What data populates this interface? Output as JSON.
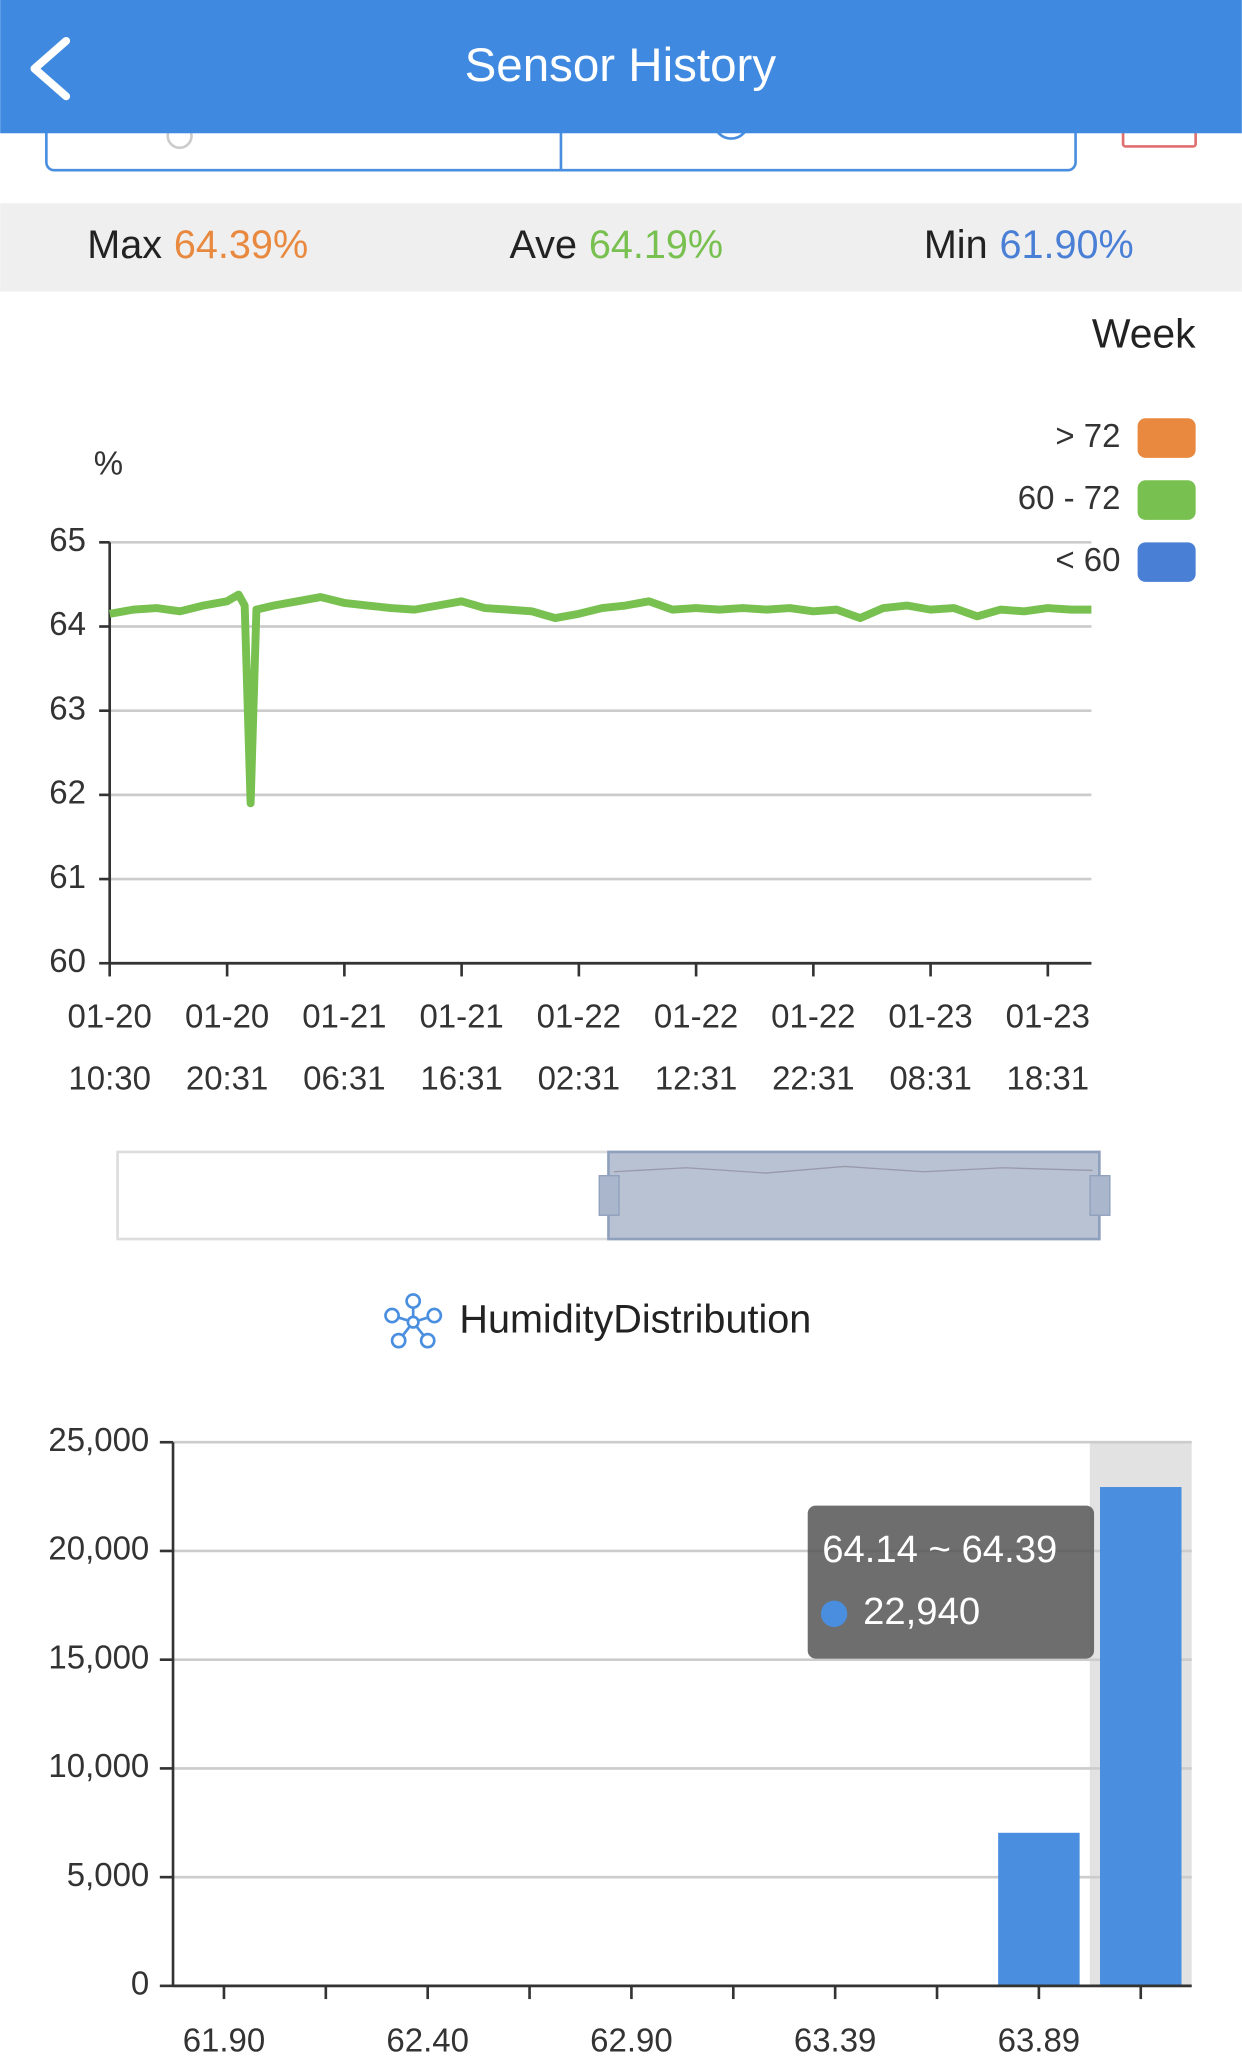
{
  "header": {
    "title": "Sensor History"
  },
  "stats": [
    {
      "label": "Max",
      "value": "64.39%",
      "color": "#e8893f"
    },
    {
      "label": "Ave",
      "value": "64.19%",
      "color": "#78c04f"
    },
    {
      "label": "Min",
      "value": "61.90%",
      "color": "#4a7fd6"
    }
  ],
  "period": "Week",
  "chart_data": [
    {
      "type": "line",
      "y_label": "%",
      "x": [
        "01-20 10:30",
        "01-20 12:30",
        "01-20 14:30",
        "01-20 16:30",
        "01-20 18:30",
        "01-20 20:30",
        "01-20 21:30",
        "01-20 22:01",
        "01-20 22:31",
        "01-20 23:01",
        "01-21 00:30",
        "01-21 02:30",
        "01-21 04:30",
        "01-21 06:30",
        "01-21 08:30",
        "01-21 10:30",
        "01-21 12:30",
        "01-21 14:30",
        "01-21 16:30",
        "01-21 18:30",
        "01-21 20:30",
        "01-21 22:30",
        "01-22 00:30",
        "01-22 02:30",
        "01-22 04:30",
        "01-22 06:30",
        "01-22 08:30",
        "01-22 10:30",
        "01-22 12:30",
        "01-22 14:30",
        "01-22 16:30",
        "01-22 18:30",
        "01-22 20:30",
        "01-22 22:30",
        "01-23 00:30",
        "01-23 02:30",
        "01-23 04:30",
        "01-23 06:30",
        "01-23 08:30",
        "01-23 10:30",
        "01-23 12:30",
        "01-23 14:30",
        "01-23 16:30",
        "01-23 18:30",
        "01-23 20:30",
        "01-23 22:14"
      ],
      "series": [
        {
          "name": "60 - 72",
          "color": "#78c04f",
          "values": [
            64.15,
            64.2,
            64.22,
            64.18,
            64.25,
            64.3,
            64.38,
            64.25,
            61.9,
            64.2,
            64.25,
            64.3,
            64.35,
            64.28,
            64.25,
            64.22,
            64.2,
            64.25,
            64.3,
            64.22,
            64.2,
            64.18,
            64.1,
            64.15,
            64.22,
            64.25,
            64.3,
            64.2,
            64.22,
            64.2,
            64.22,
            64.2,
            64.22,
            64.18,
            64.2,
            64.1,
            64.22,
            64.25,
            64.2,
            64.22,
            64.12,
            64.2,
            64.18,
            64.22,
            64.2,
            64.2
          ]
        }
      ],
      "legend": [
        {
          "label": "> 72",
          "color": "#e8893f"
        },
        {
          "label": "60 - 72",
          "color": "#78c04f"
        },
        {
          "label": "< 60",
          "color": "#4a7fd6"
        }
      ],
      "xlim": [
        "01-20 10:30",
        "01-23 22:14"
      ],
      "xticks": [
        "01-20 10:30",
        "01-20 20:31",
        "01-21 06:31",
        "01-21 16:31",
        "01-22 02:31",
        "01-22 12:31",
        "01-22 22:31",
        "01-23 08:31",
        "01-23 18:31"
      ],
      "ylim": [
        60,
        65
      ],
      "yticks": [
        60,
        61,
        62,
        63,
        64,
        65
      ],
      "grid": true
    },
    {
      "type": "bar",
      "title": "HumidityDistribution",
      "color": "#4a8fdf",
      "categories": [
        "61.90",
        null,
        "62.40",
        null,
        "62.90",
        null,
        "63.39",
        null,
        "63.89",
        null
      ],
      "values": [
        0,
        0,
        0,
        0,
        0,
        0,
        0,
        0,
        7040,
        22940
      ],
      "value_labels": [
        null,
        null,
        null,
        null,
        null,
        null,
        null,
        null,
        null,
        "22,940"
      ],
      "tooltip_title": "64.14 ~ 64.39",
      "highlight_index": 9,
      "ylim": [
        0,
        25000
      ],
      "yticks": [
        0,
        {
          "value": 5000,
          "label": "5,000"
        },
        {
          "value": 10000,
          "label": "10,000"
        },
        {
          "value": 15000,
          "label": "15,000"
        },
        {
          "value": 20000,
          "label": "20,000"
        },
        {
          "value": 25000,
          "label": "25,000"
        }
      ],
      "grid": true
    }
  ]
}
